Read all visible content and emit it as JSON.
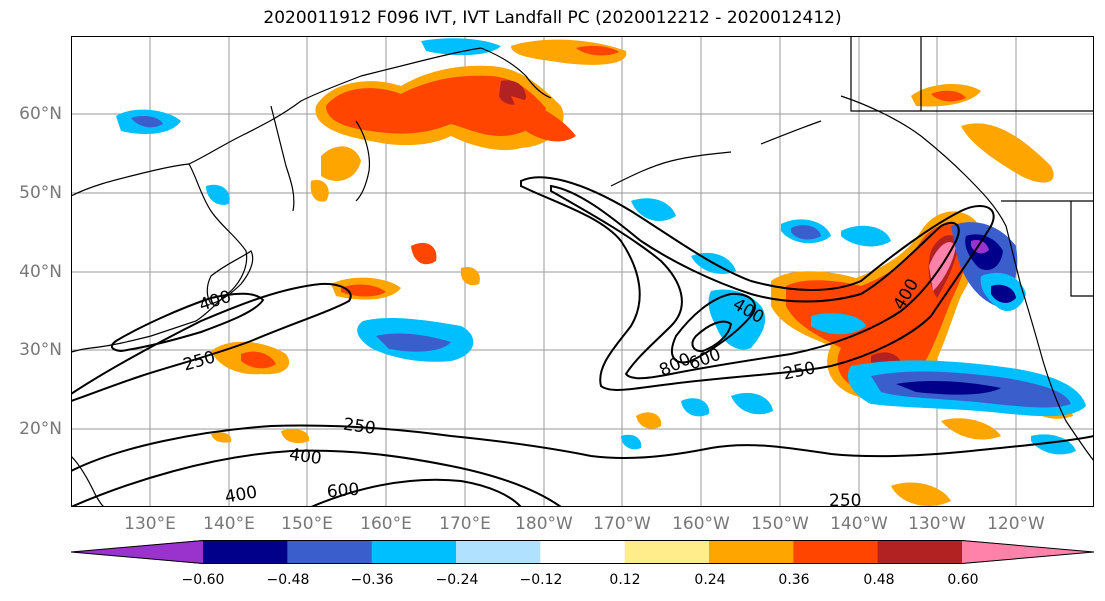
{
  "title": "2020011912 F096 IVT, IVT Landfall PC (2020012212 - 2020012412)",
  "map": {
    "lat_labels": [
      "60°N",
      "50°N",
      "40°N",
      "30°N",
      "20°N"
    ],
    "lon_labels": [
      "130°E",
      "140°E",
      "150°E",
      "160°E",
      "170°E",
      "180°W",
      "170°W",
      "160°W",
      "150°W",
      "140°W",
      "130°W",
      "120°W"
    ],
    "contour_levels": [
      "250",
      "400",
      "600",
      "800"
    ],
    "contour_labels": [
      {
        "text": "400"
      },
      {
        "text": "250"
      },
      {
        "text": "400"
      },
      {
        "text": "800"
      },
      {
        "text": "600"
      },
      {
        "text": "250"
      },
      {
        "text": "400"
      },
      {
        "text": "250"
      },
      {
        "text": "400"
      },
      {
        "text": "400"
      },
      {
        "text": "600"
      },
      {
        "text": "250"
      }
    ]
  },
  "colorbar": {
    "colors": [
      "#9a32cd",
      "#00008b",
      "#3a5fcd",
      "#00bfff",
      "#b0e2ff",
      "#ffffff",
      "#ffec8b",
      "#ffa500",
      "#ff4500",
      "#b22222",
      "#ff82ab"
    ],
    "tick_labels": [
      "−0.60",
      "−0.48",
      "−0.36",
      "−0.24",
      "−0.12",
      "0.12",
      "0.24",
      "0.36",
      "0.48",
      "0.60"
    ]
  }
}
